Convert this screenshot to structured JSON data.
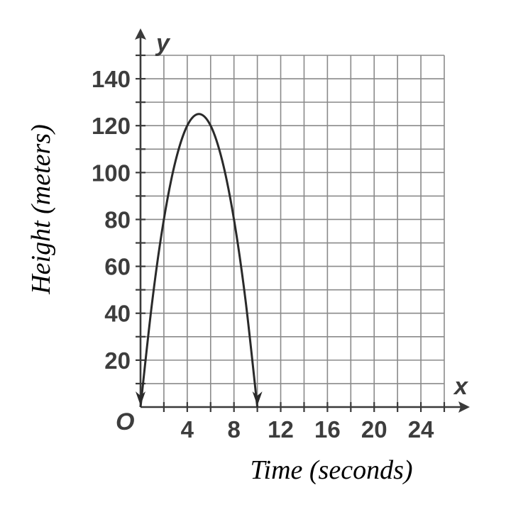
{
  "chart_data": {
    "type": "line",
    "title": "",
    "xlabel": "Time (seconds)",
    "ylabel": "Height (meters)",
    "x_axis_letter": "x",
    "y_axis_letter": "y",
    "origin_label": "O",
    "xlim": [
      0,
      26
    ],
    "ylim": [
      0,
      150
    ],
    "x_grid_step": 2,
    "y_grid_step": 10,
    "x_tick_values": [
      4,
      8,
      12,
      16,
      20,
      24
    ],
    "x_tick_labels": [
      "4",
      "8",
      "12",
      "16",
      "20",
      "24"
    ],
    "y_tick_values": [
      20,
      40,
      60,
      80,
      100,
      120,
      140
    ],
    "y_tick_labels": [
      "20",
      "40",
      "60",
      "80",
      "100",
      "120",
      "140"
    ],
    "grid": true,
    "series": [
      {
        "function": "y = -5x^2 + 50x",
        "x": [
          0,
          1,
          2,
          3,
          4,
          5,
          6,
          7,
          8,
          9,
          10
        ],
        "y": [
          0,
          45,
          80,
          105,
          120,
          125,
          120,
          105,
          80,
          45,
          0
        ],
        "vertex": [
          5,
          125
        ],
        "arrows_at_ends": true
      }
    ]
  }
}
